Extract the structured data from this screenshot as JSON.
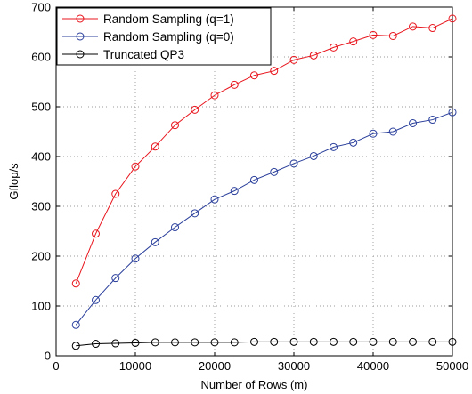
{
  "chart_data": {
    "type": "line",
    "title": "",
    "xlabel": "Number of Rows (m)",
    "ylabel": "Gflop/s",
    "xlim": [
      0,
      50000
    ],
    "ylim": [
      0,
      700
    ],
    "x_ticks": [
      0,
      10000,
      20000,
      30000,
      40000,
      50000
    ],
    "y_ticks": [
      0,
      100,
      200,
      300,
      400,
      500,
      600,
      700
    ],
    "x_tick_labels": [
      "0",
      "10000",
      "20000",
      "30000",
      "40000",
      "50000"
    ],
    "y_tick_labels": [
      "0",
      "100",
      "200",
      "300",
      "400",
      "500",
      "600",
      "700"
    ],
    "grid": "dotted",
    "legend_position": "top-left",
    "x": [
      2500,
      5000,
      7500,
      10000,
      12500,
      15000,
      17500,
      20000,
      22500,
      25000,
      27500,
      30000,
      32500,
      35000,
      37500,
      40000,
      42500,
      45000,
      47500,
      50000
    ],
    "series": [
      {
        "name": "Random Sampling (q=1)",
        "color": "#e8141c",
        "marker": "circle",
        "values": [
          145,
          245,
          325,
          380,
          420,
          463,
          494,
          523,
          544,
          563,
          572,
          594,
          603,
          619,
          631,
          644,
          642,
          661,
          658,
          677
        ]
      },
      {
        "name": "Random Sampling (q=0)",
        "color": "#2a3f9b",
        "marker": "circle",
        "values": [
          62,
          112,
          156,
          195,
          228,
          258,
          286,
          314,
          331,
          353,
          369,
          386,
          401,
          419,
          428,
          446,
          450,
          467,
          474,
          489
        ]
      },
      {
        "name": "Truncated QP3",
        "color": "#000000",
        "marker": "circle",
        "values": [
          20,
          24,
          25,
          26,
          27,
          27,
          27,
          27,
          27,
          28,
          28,
          28,
          28,
          28,
          28,
          28,
          28,
          28,
          28,
          28
        ]
      }
    ]
  }
}
